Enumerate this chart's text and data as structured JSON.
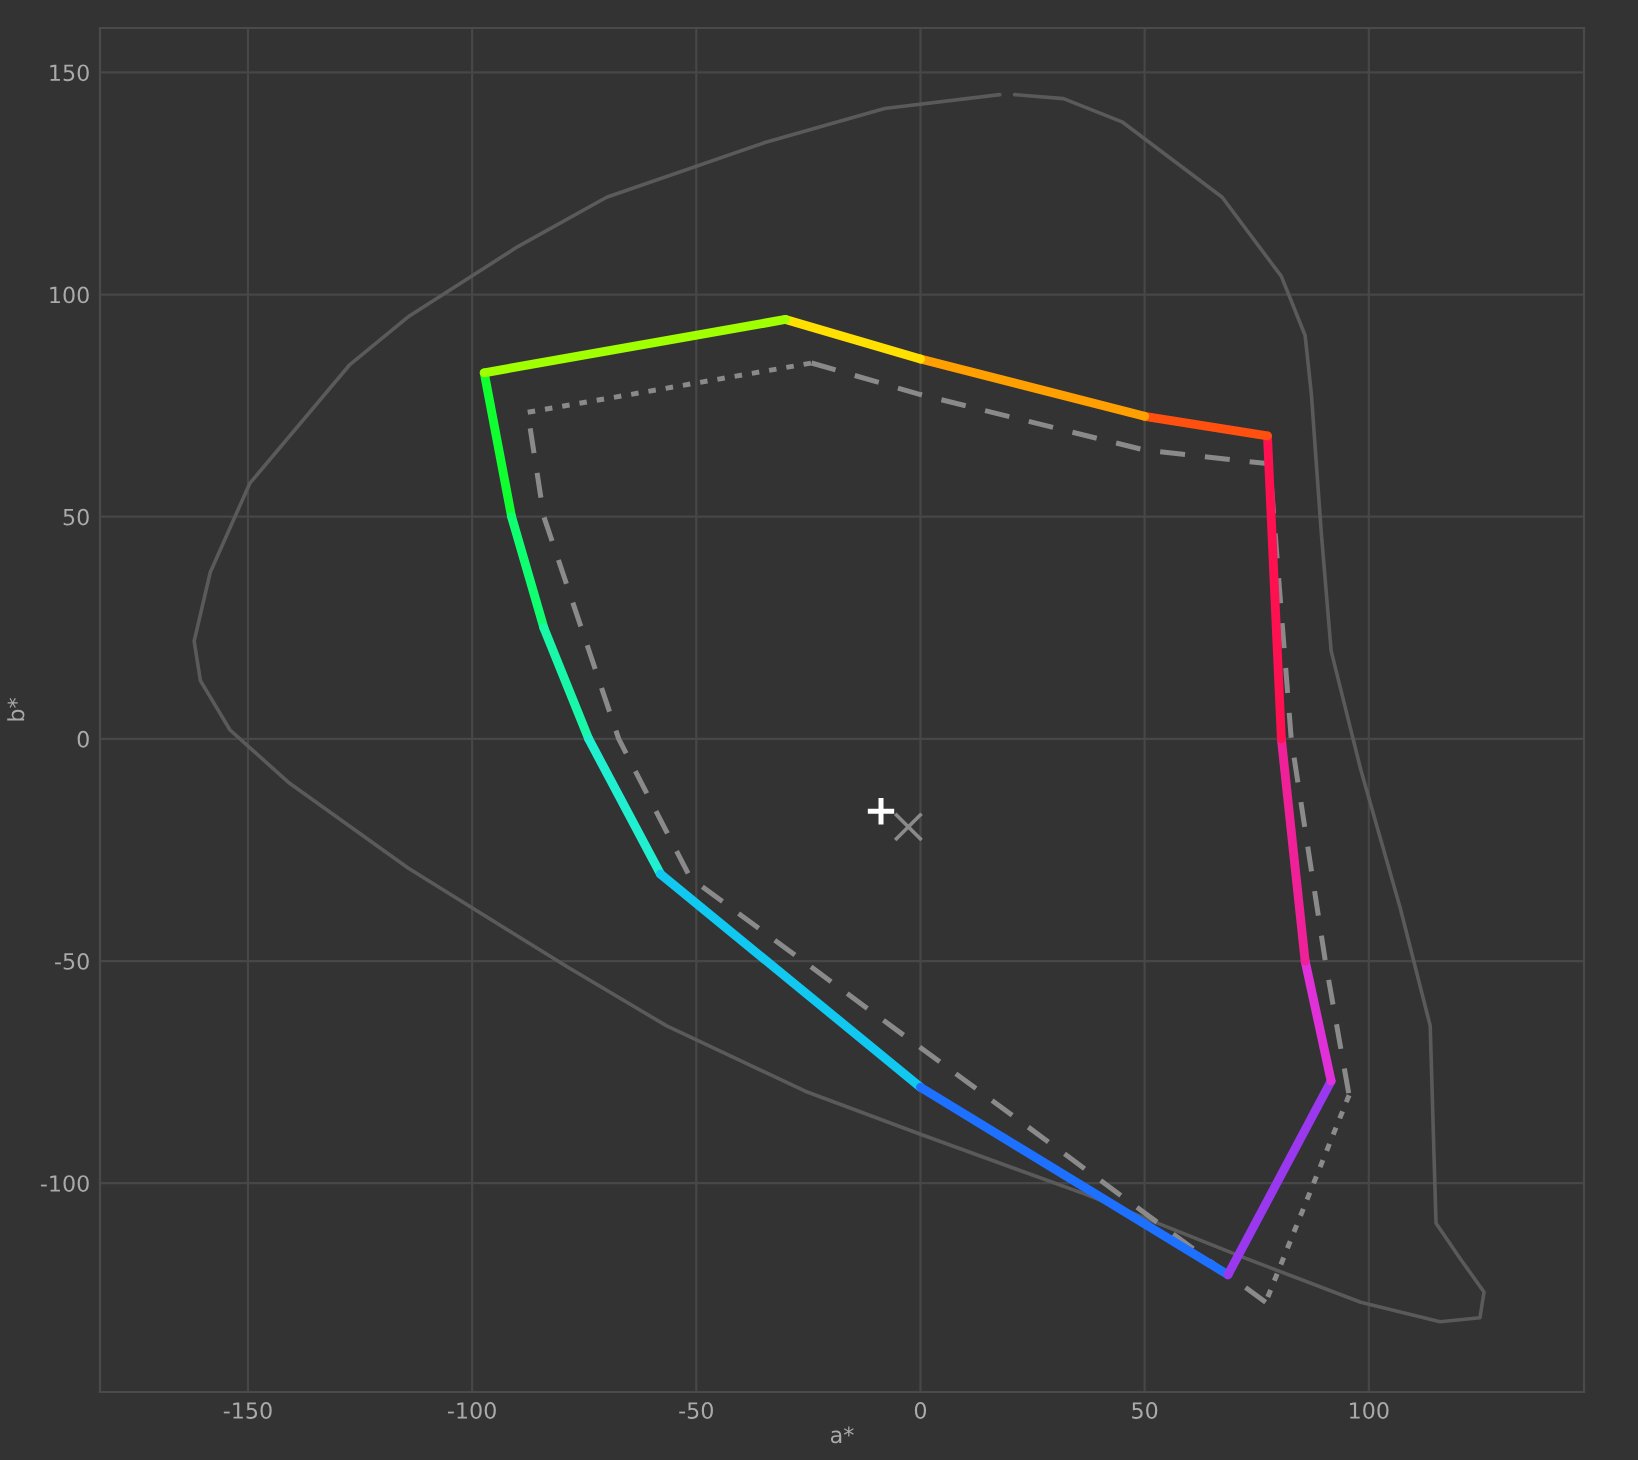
{
  "chart_data": {
    "type": "line",
    "xlabel": "a*",
    "ylabel": "b*",
    "xlim": [
      -183,
      148
    ],
    "ylim": [
      -147,
      160
    ],
    "xticks": [
      -150,
      -100,
      -50,
      0,
      50,
      100
    ],
    "yticks": [
      -100,
      -50,
      0,
      50,
      100,
      150
    ],
    "grid": true,
    "legend": false,
    "series": [
      {
        "color": "#5a5a5a",
        "line_style": "solid",
        "x": [
          17.7,
          -8,
          -34.5,
          -70,
          -89.8,
          -114,
          -127.4,
          -149.6,
          -158.4,
          -162,
          -160.6,
          -154,
          -140.7,
          -114.2,
          -78.8,
          -56.6,
          -25.7,
          0,
          36.3,
          71.7,
          98.2,
          115.9,
          124.8,
          125.7,
          120.4,
          115,
          114.6,
          113.7,
          107,
          98.2,
          91.6,
          89.4,
          87.2,
          85.8,
          80.5,
          67.3,
          45.1,
          31.9,
          21
        ],
        "values": [
          145,
          141.9,
          134.3,
          121.9,
          110.8,
          95.2,
          84.1,
          57.5,
          37.5,
          22,
          13.1,
          2,
          -10,
          -29.1,
          -51.3,
          -64.6,
          -79.3,
          -89,
          -102.3,
          -116.6,
          -126.8,
          -131.2,
          -130.3,
          -124.5,
          -117,
          -109,
          -95.7,
          -64.6,
          -38,
          -6.9,
          19.8,
          46.4,
          77.5,
          90.8,
          104.1,
          121.9,
          138.8,
          144.1,
          145
        ]
      },
      {
        "color": "#8a8a8a",
        "line_style": "dashed",
        "x": [
          -24.3,
          0,
          50,
          77.9,
          82.7,
          90.3,
          95.6
        ],
        "values": [
          84.6,
          77.5,
          65,
          61.9,
          0,
          -50,
          -80.2
        ]
      },
      {
        "color": "#8a8a8a",
        "line_style": "dotted",
        "x": [
          95.6,
          77
        ],
        "values": [
          -80.2,
          -126.8
        ]
      },
      {
        "color": "#8a8a8a",
        "line_style": "dashed",
        "x": [
          77,
          -51.3,
          -67.3,
          -84,
          -87.6
        ],
        "values": [
          -126.8,
          -31.3,
          0,
          50,
          73.5
        ]
      },
      {
        "color": "#8a8a8a",
        "line_style": "dotted",
        "x": [
          -87.6,
          -24.3
        ],
        "values": [
          73.5,
          84.6
        ]
      },
      {
        "color": "#10ff30",
        "line_style": "solid",
        "x": [
          -97.3,
          -91.2
        ],
        "values": [
          82.4,
          50
        ]
      },
      {
        "color": "#10ff70",
        "line_style": "solid",
        "x": [
          -91.2,
          -84
        ],
        "values": [
          50,
          25
        ]
      },
      {
        "color": "#18f8a8",
        "line_style": "solid",
        "x": [
          -84,
          -74
        ],
        "values": [
          25,
          0
        ]
      },
      {
        "color": "#20f0d0",
        "line_style": "solid",
        "x": [
          -74,
          -58
        ],
        "values": [
          0,
          -30.4
        ]
      },
      {
        "color": "#10c8f0",
        "line_style": "solid",
        "x": [
          -58,
          0
        ],
        "values": [
          -30.4,
          -78.4
        ]
      },
      {
        "color": "#1e70ff",
        "line_style": "solid",
        "x": [
          0,
          68.6
        ],
        "values": [
          -78.4,
          -120.6
        ]
      },
      {
        "color": "#9a38f0",
        "line_style": "solid",
        "x": [
          68.6,
          91.6
        ],
        "values": [
          -120.6,
          -77
        ]
      },
      {
        "color": "#e030d8",
        "line_style": "solid",
        "x": [
          91.6,
          85.8
        ],
        "values": [
          -77,
          -50
        ]
      },
      {
        "color": "#f02098",
        "line_style": "solid",
        "x": [
          85.8,
          80.5
        ],
        "values": [
          -50,
          0
        ]
      },
      {
        "color": "#ff1050",
        "line_style": "solid",
        "x": [
          80.5,
          77.4
        ],
        "values": [
          0,
          68.2
        ]
      },
      {
        "color": "#ff5010",
        "line_style": "solid",
        "x": [
          77.4,
          50
        ],
        "values": [
          68.2,
          72.6
        ]
      },
      {
        "color": "#ffa000",
        "line_style": "solid",
        "x": [
          50,
          0
        ],
        "values": [
          72.6,
          85.5
        ]
      },
      {
        "color": "#ffe000",
        "line_style": "solid",
        "x": [
          0,
          -30.1
        ],
        "values": [
          85.5,
          94.4
        ]
      },
      {
        "color": "#a0ff00",
        "line_style": "solid",
        "x": [
          -30.1,
          -97.3
        ],
        "values": [
          94.4,
          82.4
        ]
      },
      {
        "type": "scatter",
        "marker": "plus",
        "color": "#ffffff",
        "x": [
          -8.8
        ],
        "values": [
          -16.3
        ]
      },
      {
        "type": "scatter",
        "marker": "cross",
        "color": "#8a8a8a",
        "x": [
          -2.7
        ],
        "values": [
          -19.8
        ]
      }
    ]
  }
}
